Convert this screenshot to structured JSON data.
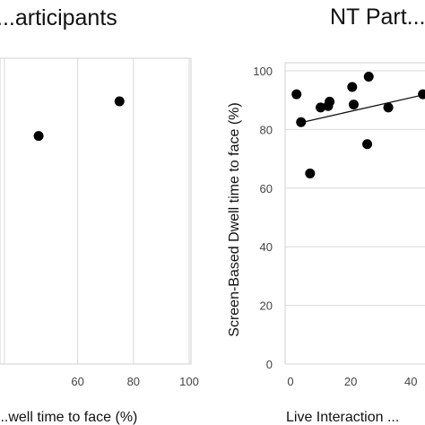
{
  "chart_data": [
    {
      "type": "scatter",
      "title": "...articipants",
      "xlabel": "...well time to face (%)",
      "ylabel": "",
      "xlim": [
        0,
        100
      ],
      "ylim": [
        0,
        100
      ],
      "x_ticks": [
        "60",
        "80",
        "100"
      ],
      "grid": "vertical",
      "points": [
        {
          "x": 46,
          "y": 79
        },
        {
          "x": 75,
          "y": 91
        }
      ]
    },
    {
      "type": "scatter",
      "title": "NT Part...",
      "xlabel": "Live Interaction ...",
      "ylabel": "Screen-Based Dwell time to face (%)",
      "xlim": [
        0,
        45
      ],
      "ylim": [
        0,
        100
      ],
      "x_ticks": [
        "0",
        "20",
        "40"
      ],
      "y_ticks": [
        "0",
        "20",
        "40",
        "60",
        "80",
        "100"
      ],
      "grid": "horizontal",
      "trendline": {
        "from": {
          "x": 2,
          "y": 82
        },
        "to": {
          "x": 45,
          "y": 92
        }
      },
      "points": [
        {
          "x": 2,
          "y": 92
        },
        {
          "x": 3.5,
          "y": 82.5
        },
        {
          "x": 6.5,
          "y": 65
        },
        {
          "x": 10,
          "y": 87.5
        },
        {
          "x": 12.5,
          "y": 88
        },
        {
          "x": 13,
          "y": 89.5
        },
        {
          "x": 20.5,
          "y": 94.5
        },
        {
          "x": 21,
          "y": 88.5
        },
        {
          "x": 25.5,
          "y": 75
        },
        {
          "x": 26,
          "y": 98
        },
        {
          "x": 32.5,
          "y": 87.5
        },
        {
          "x": 44,
          "y": 92
        }
      ]
    }
  ]
}
